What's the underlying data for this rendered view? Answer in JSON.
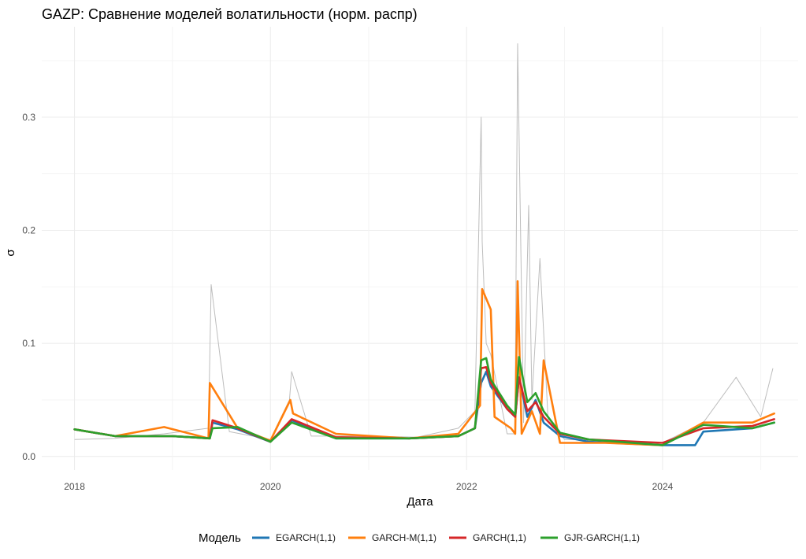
{
  "chart_data": {
    "type": "line",
    "title": "GAZP: Сравнение моделей волатильности (норм. распр)",
    "xlabel": "Дата",
    "ylabel": "σ",
    "x_ticks": [
      "2018",
      "2020",
      "2022",
      "2024"
    ],
    "x_tick_values": [
      "2018-01-01",
      "2020-01-01",
      "2022-01-01",
      "2024-01-01"
    ],
    "y_ticks": [
      "0.0",
      "0.1",
      "0.2",
      "0.3"
    ],
    "y_tick_values": [
      0.0,
      0.1,
      0.2,
      0.3
    ],
    "xlim": [
      "2017-09-01",
      "2025-05-20"
    ],
    "ylim": [
      -0.012,
      0.38
    ],
    "grid": true,
    "legend_position": "bottom",
    "legend_title": "Модель",
    "background_series": {
      "color": "#bdbdbd",
      "x": [
        "2018-01-01",
        "2018-06-01",
        "2018-12-01",
        "2019-05-15",
        "2019-05-25",
        "2019-08-01",
        "2020-01-01",
        "2020-03-12",
        "2020-03-20",
        "2020-06-01",
        "2021-01-01",
        "2021-07-01",
        "2021-12-01",
        "2022-02-01",
        "2022-02-24",
        "2022-02-28",
        "2022-03-15",
        "2022-04-01",
        "2022-06-01",
        "2022-06-30",
        "2022-07-10",
        "2022-08-01",
        "2022-08-20",
        "2022-09-01",
        "2022-10-01",
        "2022-11-01",
        "2023-01-01",
        "2023-06-01",
        "2024-01-01",
        "2024-06-01",
        "2024-10-01",
        "2025-01-01",
        "2025-02-15"
      ],
      "values": [
        0.015,
        0.016,
        0.02,
        0.025,
        0.152,
        0.022,
        0.015,
        0.05,
        0.075,
        0.018,
        0.018,
        0.017,
        0.025,
        0.04,
        0.3,
        0.19,
        0.1,
        0.09,
        0.02,
        0.02,
        0.365,
        0.03,
        0.222,
        0.05,
        0.175,
        0.03,
        0.015,
        0.014,
        0.012,
        0.03,
        0.07,
        0.035,
        0.078
      ]
    },
    "series": [
      {
        "name": "EGARCH(1,1)",
        "color": "#1f77b4",
        "x": [
          "2018-01-01",
          "2018-06-01",
          "2019-01-01",
          "2019-05-20",
          "2019-05-30",
          "2019-09-01",
          "2020-01-01",
          "2020-03-20",
          "2020-09-01",
          "2021-06-01",
          "2021-12-01",
          "2022-02-01",
          "2022-02-24",
          "2022-03-15",
          "2022-04-01",
          "2022-06-01",
          "2022-07-01",
          "2022-07-15",
          "2022-08-15",
          "2022-09-15",
          "2022-10-15",
          "2022-12-15",
          "2023-04-01",
          "2024-01-01",
          "2024-05-01",
          "2024-06-01",
          "2024-12-01",
          "2025-02-20"
        ],
        "values": [
          0.024,
          0.018,
          0.018,
          0.016,
          0.03,
          0.024,
          0.013,
          0.032,
          0.016,
          0.016,
          0.018,
          0.025,
          0.065,
          0.075,
          0.062,
          0.042,
          0.035,
          0.07,
          0.035,
          0.05,
          0.03,
          0.018,
          0.013,
          0.01,
          0.01,
          0.022,
          0.025,
          0.03
        ]
      },
      {
        "name": "GARCH-M(1,1)",
        "color": "#ff7f0e",
        "x": [
          "2018-01-01",
          "2018-06-01",
          "2018-12-01",
          "2019-05-15",
          "2019-05-20",
          "2019-09-01",
          "2020-01-01",
          "2020-03-15",
          "2020-03-25",
          "2020-09-01",
          "2021-06-01",
          "2021-12-01",
          "2022-02-20",
          "2022-02-28",
          "2022-04-01",
          "2022-04-15",
          "2022-06-15",
          "2022-07-01",
          "2022-07-10",
          "2022-07-25",
          "2022-09-01",
          "2022-10-01",
          "2022-10-15",
          "2022-12-15",
          "2023-06-01",
          "2024-01-01",
          "2024-06-01",
          "2024-12-01",
          "2025-02-20"
        ],
        "values": [
          0.024,
          0.018,
          0.026,
          0.016,
          0.065,
          0.025,
          0.014,
          0.05,
          0.038,
          0.02,
          0.016,
          0.02,
          0.045,
          0.148,
          0.13,
          0.035,
          0.025,
          0.02,
          0.155,
          0.02,
          0.04,
          0.02,
          0.085,
          0.012,
          0.012,
          0.01,
          0.03,
          0.03,
          0.038
        ]
      },
      {
        "name": "GARCH(1,1)",
        "color": "#d62728",
        "x": [
          "2018-01-01",
          "2018-06-01",
          "2019-01-01",
          "2019-05-20",
          "2019-05-30",
          "2019-09-01",
          "2020-01-01",
          "2020-03-20",
          "2020-09-01",
          "2021-06-01",
          "2021-12-01",
          "2022-02-01",
          "2022-02-24",
          "2022-03-15",
          "2022-04-01",
          "2022-06-01",
          "2022-07-01",
          "2022-07-15",
          "2022-08-15",
          "2022-09-15",
          "2022-10-15",
          "2022-12-15",
          "2023-04-01",
          "2024-01-01",
          "2024-06-01",
          "2024-12-01",
          "2025-02-20"
        ],
        "values": [
          0.024,
          0.018,
          0.018,
          0.016,
          0.032,
          0.025,
          0.013,
          0.033,
          0.017,
          0.016,
          0.018,
          0.025,
          0.078,
          0.079,
          0.065,
          0.042,
          0.035,
          0.07,
          0.04,
          0.048,
          0.035,
          0.02,
          0.015,
          0.012,
          0.025,
          0.027,
          0.033
        ]
      },
      {
        "name": "GJR-GARCH(1,1)",
        "color": "#2ca02c",
        "x": [
          "2018-01-01",
          "2018-06-01",
          "2019-01-01",
          "2019-05-20",
          "2019-05-30",
          "2019-09-01",
          "2020-01-01",
          "2020-03-20",
          "2020-09-01",
          "2021-06-01",
          "2021-12-01",
          "2022-02-01",
          "2022-02-24",
          "2022-03-15",
          "2022-04-01",
          "2022-06-01",
          "2022-07-01",
          "2022-07-15",
          "2022-08-15",
          "2022-09-15",
          "2022-10-15",
          "2022-12-15",
          "2023-04-01",
          "2024-01-01",
          "2024-06-01",
          "2024-12-01",
          "2025-02-20"
        ],
        "values": [
          0.024,
          0.018,
          0.018,
          0.016,
          0.025,
          0.026,
          0.013,
          0.03,
          0.016,
          0.016,
          0.018,
          0.025,
          0.085,
          0.087,
          0.068,
          0.045,
          0.037,
          0.088,
          0.048,
          0.056,
          0.04,
          0.021,
          0.015,
          0.01,
          0.028,
          0.025,
          0.03
        ]
      }
    ]
  }
}
